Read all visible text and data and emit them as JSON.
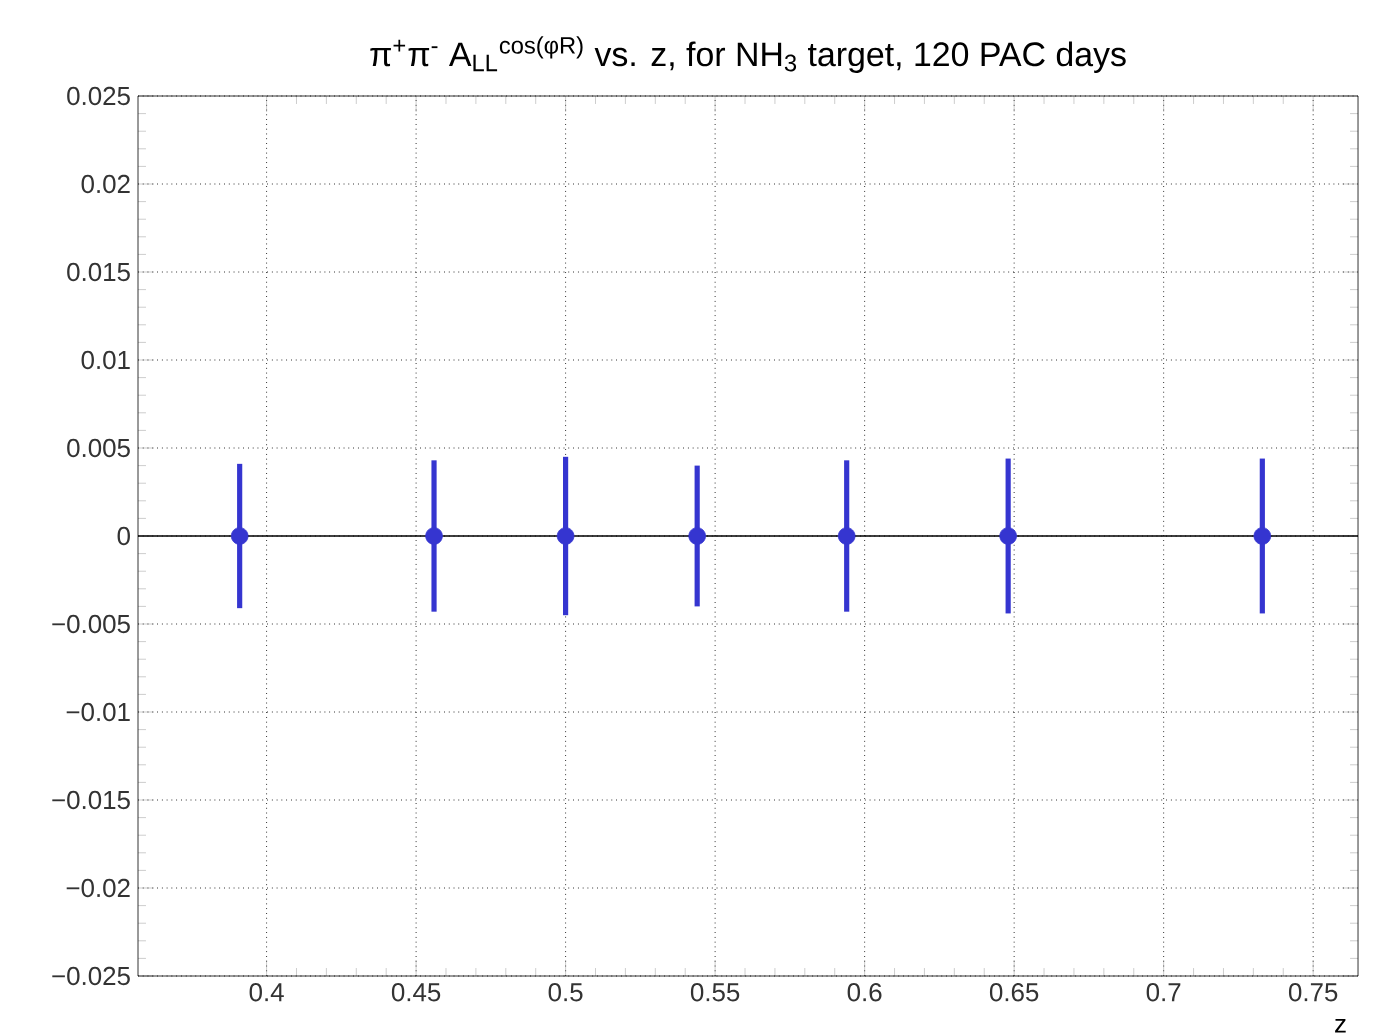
{
  "chart_data": {
    "type": "scatter",
    "title": "π$^{+}$π$^{-}$ A$_{LL}$$^{cos(φR)}$ vs. z, for NH$_{3}$ target, 120 PAC days",
    "xlabel": "z",
    "x": [
      0.391,
      0.456,
      0.5,
      0.544,
      0.594,
      0.648,
      0.733
    ],
    "series": [
      {
        "color": "#3535d0",
        "values": [
          0,
          0,
          0,
          0,
          0,
          0,
          0
        ],
        "errors": [
          0.0041,
          0.0043,
          0.0045,
          0.004,
          0.0043,
          0.0044,
          0.0044
        ]
      }
    ],
    "xlim": [
      0.357,
      0.765
    ],
    "xticks": [
      0.4,
      0.45,
      0.5,
      0.55,
      0.6,
      0.65,
      0.7,
      0.75
    ],
    "ylim": [
      -0.025,
      0.025
    ],
    "yticks": [
      {
        "value": -0.025,
        "label": "−0.025"
      },
      {
        "value": -0.02,
        "label": "−0.02"
      },
      {
        "value": -0.015,
        "label": "−0.015"
      },
      {
        "value": -0.01,
        "label": "−0.01"
      },
      {
        "value": -0.005,
        "label": "−0.005"
      },
      0,
      0.005,
      0.01,
      0.015,
      0.02,
      0.025
    ],
    "ref_lines": [
      {
        "axis": "y",
        "value": 0,
        "color": "#000000"
      }
    ],
    "grid": true,
    "marker": "circle"
  }
}
